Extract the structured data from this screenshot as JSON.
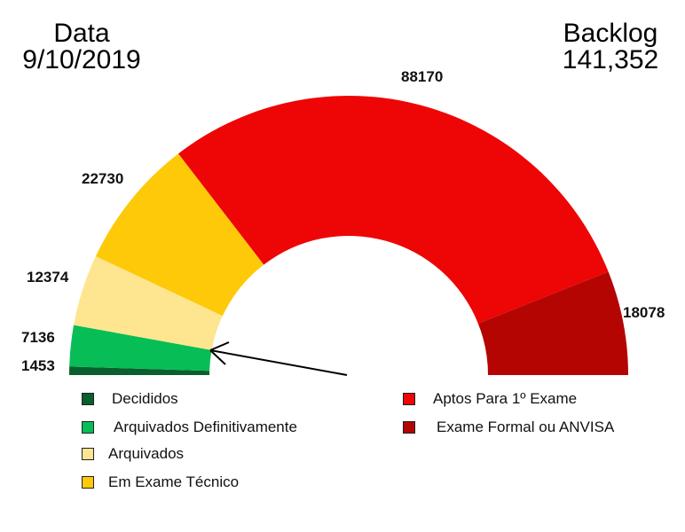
{
  "header": {
    "left_title": "Data",
    "left_value": "9/10/2019",
    "right_title": "Backlog",
    "right_value": "141,352"
  },
  "chart_data": {
    "type": "pie",
    "subtype": "semi-donut",
    "title": "",
    "categories": [
      "Decididos",
      "Arquivados Definitivamente",
      "Arquivados",
      "Em Exame Técnico",
      "Aptos Para 1º Exame",
      "Exame Formal ou ANVISA"
    ],
    "values": [
      1453,
      7136,
      12374,
      22730,
      88170,
      18078
    ],
    "colors": [
      "#0b5e2e",
      "#07bd55",
      "#fde68f",
      "#fec908",
      "#ee0505",
      "#b40503"
    ],
    "data_labels": [
      "1453",
      "7136",
      "12374",
      "22730",
      "88170",
      "18078"
    ],
    "legend_position": "bottom",
    "annotation": "arrow pointing to boundary between Arquivados Definitivamente and Arquivados"
  },
  "legend": {
    "left": [
      {
        "label": "Decididos",
        "color": "#0b5e2e"
      },
      {
        "label": "Arquivados Definitivamente",
        "color": "#07bd55"
      },
      {
        "label": "Arquivados",
        "color": "#fde68f"
      },
      {
        "label": "Em Exame Técnico",
        "color": "#fec908"
      }
    ],
    "right": [
      {
        "label": "Aptos Para 1º Exame",
        "color": "#ee0505"
      },
      {
        "label": "Exame Formal ou ANVISA",
        "color": "#b40503"
      }
    ]
  }
}
